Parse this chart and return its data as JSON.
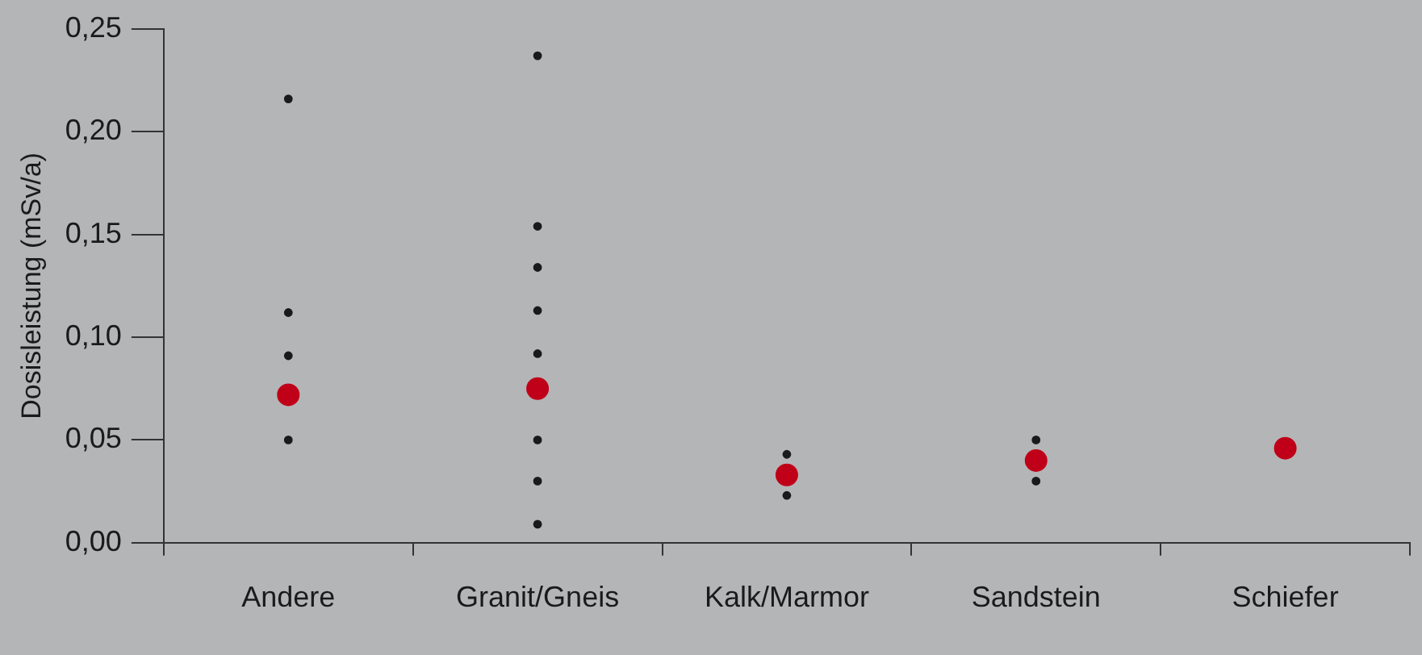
{
  "chart_data": {
    "type": "scatter",
    "ylabel": "Dosisleistung (mSv/a)",
    "categories": [
      "Andere",
      "Granit/Gneis",
      "Kalk/Marmor",
      "Sandstein",
      "Schiefer"
    ],
    "ylim": [
      0,
      0.25
    ],
    "yticks": [
      {
        "value": 0,
        "label": "0,00"
      },
      {
        "value": 0.05,
        "label": "0,05"
      },
      {
        "value": 0.1,
        "label": "0,10"
      },
      {
        "value": 0.15,
        "label": "0,15"
      },
      {
        "value": 0.2,
        "label": "0,20"
      },
      {
        "value": 0.25,
        "label": "0,25"
      }
    ],
    "grid": false,
    "legend": false,
    "marker": "circle",
    "series": [
      {
        "color": "#1a1a1a",
        "x": [
          "Andere",
          "Andere",
          "Andere",
          "Andere",
          "Granit/Gneis",
          "Granit/Gneis",
          "Granit/Gneis",
          "Granit/Gneis",
          "Granit/Gneis",
          "Granit/Gneis",
          "Granit/Gneis",
          "Granit/Gneis",
          "Kalk/Marmor",
          "Kalk/Marmor",
          "Sandstein",
          "Sandstein"
        ],
        "values": [
          0.216,
          0.112,
          0.091,
          0.05,
          0.237,
          0.154,
          0.134,
          0.113,
          0.092,
          0.05,
          0.03,
          0.009,
          0.043,
          0.023,
          0.05,
          0.03
        ]
      },
      {
        "color": "#c00018",
        "x": [
          "Andere",
          "Granit/Gneis",
          "Kalk/Marmor",
          "Sandstein",
          "Schiefer"
        ],
        "values": [
          0.072,
          0.075,
          0.033,
          0.04,
          0.046
        ]
      }
    ]
  }
}
